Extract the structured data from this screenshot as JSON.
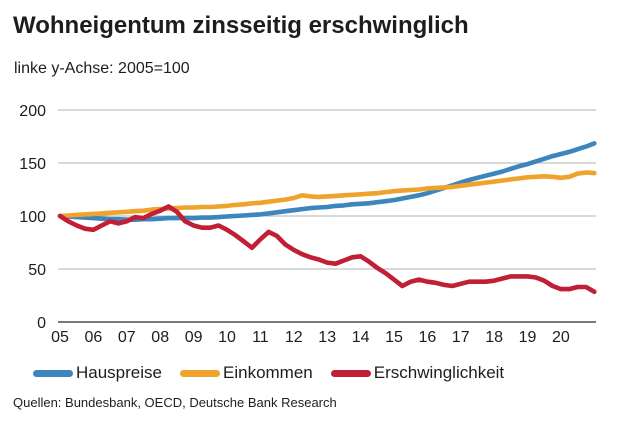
{
  "colors": {
    "grid": "#b3b3b3",
    "axis": "#4d4d4d",
    "text": "#1d1d1b",
    "hauspreise": "#3d85bd",
    "einkommen": "#efa32c",
    "erschwinglichkeit": "#c01f36"
  },
  "chart_data": {
    "type": "line",
    "title": "Wohneigentum zinsseitig erschwinglich",
    "subtitle": "linke y-Achse: 2005=100",
    "source": "Quellen: Bundesbank, OECD, Deutsche Bank Research",
    "grid": "horizontal",
    "legend_position": "bottom",
    "ylim": [
      0,
      200
    ],
    "yticks": [
      0,
      50,
      100,
      150,
      200
    ],
    "xlim": [
      2005,
      2021.05
    ],
    "x_start": 2005,
    "x_step": 0.25,
    "xticks": [
      {
        "x": 2005,
        "label": "05"
      },
      {
        "x": 2006,
        "label": "06"
      },
      {
        "x": 2007,
        "label": "07"
      },
      {
        "x": 2008,
        "label": "08"
      },
      {
        "x": 2009,
        "label": "09"
      },
      {
        "x": 2010,
        "label": "10"
      },
      {
        "x": 2011,
        "label": "11"
      },
      {
        "x": 2012,
        "label": "12"
      },
      {
        "x": 2013,
        "label": "13"
      },
      {
        "x": 2014,
        "label": "14"
      },
      {
        "x": 2015,
        "label": "15"
      },
      {
        "x": 2016,
        "label": "16"
      },
      {
        "x": 2017,
        "label": "17"
      },
      {
        "x": 2018,
        "label": "18"
      },
      {
        "x": 2019,
        "label": "19"
      },
      {
        "x": 2020,
        "label": "20"
      }
    ],
    "series": [
      {
        "name": "Hauspreise",
        "color": "#3d85bd",
        "values": [
          100,
          99.5,
          99,
          98.5,
          98,
          97.5,
          97,
          97,
          96.5,
          96.5,
          97,
          97,
          97.5,
          98,
          98,
          98,
          98,
          98.5,
          98.5,
          99,
          99.5,
          100,
          100.5,
          101,
          101.5,
          102.5,
          103.5,
          104.5,
          105.5,
          106.5,
          107.5,
          108,
          108.5,
          109.5,
          110,
          111,
          111.5,
          112,
          113,
          114,
          115,
          116.5,
          118,
          119.5,
          121.5,
          124,
          126.5,
          129,
          131.5,
          134,
          136,
          138,
          140,
          142,
          144.5,
          147,
          149,
          151.5,
          154,
          156.5,
          158.5,
          160.5,
          163,
          165.5,
          168.5
        ]
      },
      {
        "name": "Einkommen",
        "color": "#efa32c",
        "values": [
          100,
          100.5,
          101,
          101.5,
          102,
          102.5,
          103,
          103.5,
          104,
          104.5,
          105,
          106,
          106.5,
          107,
          107.5,
          108,
          108,
          108.5,
          108.5,
          109,
          109.5,
          110.5,
          111,
          112,
          112.5,
          113.5,
          114.5,
          115.5,
          117,
          119.5,
          118.5,
          118,
          118.5,
          119,
          119.5,
          120,
          120.5,
          121,
          121.5,
          122.5,
          123.5,
          124,
          124.5,
          125,
          126,
          126.5,
          127,
          127.5,
          128.5,
          129.5,
          130.5,
          131.5,
          132.5,
          133.5,
          134.5,
          135.5,
          136.5,
          137,
          137.5,
          137,
          136,
          137,
          140,
          141,
          140.5
        ]
      },
      {
        "name": "Erschwinglichkeit",
        "color": "#c01f36",
        "values": [
          100,
          95,
          91,
          88,
          87,
          91,
          95,
          93,
          95,
          99,
          98,
          102,
          105,
          109,
          104,
          95,
          91,
          89,
          89,
          91,
          87,
          82,
          76,
          70,
          78,
          85,
          81,
          73,
          68,
          64,
          61,
          59,
          56,
          55,
          58,
          61,
          62,
          57,
          51,
          46,
          40,
          34,
          38,
          40,
          38,
          37,
          35,
          34,
          36,
          38,
          38,
          38,
          39,
          41,
          43,
          43,
          43,
          42,
          39,
          34,
          31,
          31,
          33,
          33,
          28.5
        ]
      }
    ]
  }
}
